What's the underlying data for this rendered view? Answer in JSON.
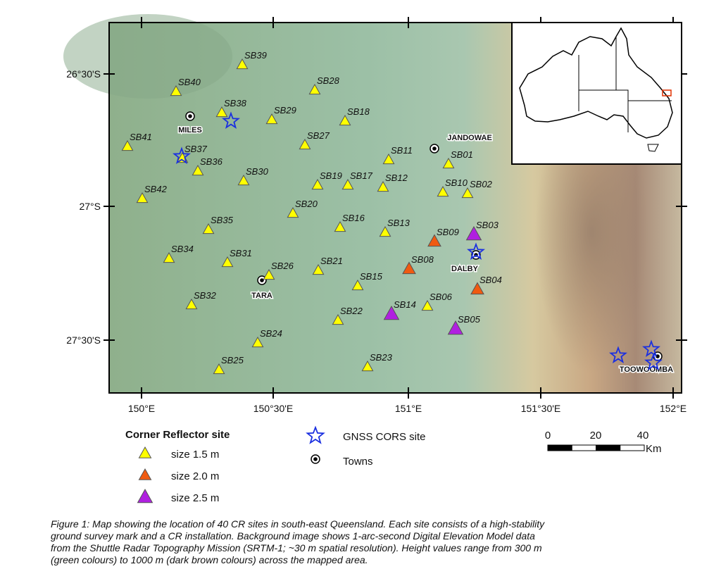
{
  "map": {
    "lat_labels": [
      "26°30'S",
      "27°S",
      "27°30'S"
    ],
    "lon_labels": [
      "150°E",
      "150°30'E",
      "151°E",
      "151°30'E",
      "152°E"
    ],
    "sites": [
      "SB39",
      "SB40",
      "SB28",
      "SB38",
      "SB29",
      "SB18",
      "SB41",
      "SB37",
      "SB27",
      "SB11",
      "SB01",
      "SB36",
      "SB30",
      "SB19",
      "SB17",
      "SB12",
      "SB10",
      "SB02",
      "SB42",
      "SB20",
      "SB16",
      "SB13",
      "SB35",
      "SB09",
      "SB03",
      "SB34",
      "SB31",
      "SB26",
      "SB21",
      "SB08",
      "SB15",
      "SB04",
      "SB32",
      "SB06",
      "SB14",
      "SB22",
      "SB05",
      "SB24",
      "SB23",
      "SB25"
    ],
    "towns": [
      "MILES",
      "JANDOWAE",
      "DALBY",
      "TARA",
      "TOOWOOMBA"
    ],
    "legend": {
      "title": "Corner Reflector site",
      "items": [
        "size 1.5 m",
        "size 2.0 m",
        "size 2.5 m"
      ],
      "gnss": "GNSS CORS site",
      "towns": "Towns"
    },
    "scale": {
      "ticks": [
        0,
        20,
        40
      ],
      "unit": "Km"
    }
  },
  "caption": [
    "Figure 1: Map showing the location of 40 CR sites in south-east Queensland. Each site consists of a high-stability",
    "ground survey mark and a CR installation. Background image shows 1-arc-second Digital Elevation Model data",
    "from the Shuttle Radar Topography Mission (SRTM-1; ~30 m spatial resolution). Height values range from 300 m",
    "(green colours) to 1000 m (dark brown colours) across the mapped area."
  ]
}
